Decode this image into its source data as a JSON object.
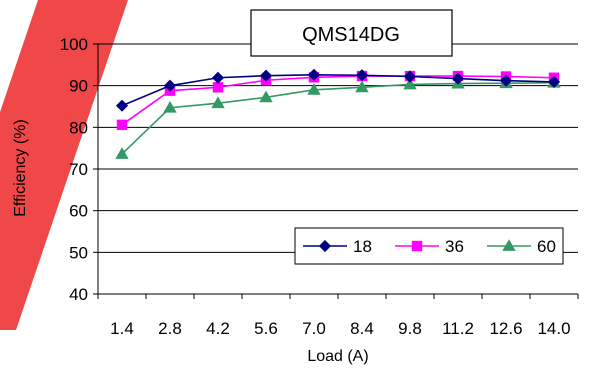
{
  "chart_data": {
    "type": "line",
    "title": "QMS14DG",
    "xlabel": "Load (A)",
    "ylabel": "Efficiency (%)",
    "categories": [
      "1.4",
      "2.8",
      "4.2",
      "5.6",
      "7.0",
      "8.4",
      "9.8",
      "11.2",
      "12.6",
      "14.0"
    ],
    "ylim": [
      40,
      100
    ],
    "yticks": [
      "40",
      "50",
      "60",
      "70",
      "80",
      "90",
      "100"
    ],
    "grid": true,
    "legend_position": "lower-right",
    "series": [
      {
        "name": "18",
        "color": "#000080",
        "marker": "diamond",
        "values": [
          85.2,
          90.0,
          91.9,
          92.4,
          92.6,
          92.5,
          92.2,
          91.7,
          91.2,
          90.9
        ]
      },
      {
        "name": "36",
        "color": "#ff00ff",
        "marker": "square",
        "values": [
          80.6,
          88.8,
          89.6,
          91.3,
          92.0,
          92.3,
          92.3,
          92.3,
          92.2,
          91.9
        ]
      },
      {
        "name": "60",
        "color": "#339966",
        "marker": "triangle",
        "values": [
          73.6,
          84.7,
          85.8,
          87.2,
          89.0,
          89.6,
          90.3,
          90.5,
          90.6,
          90.7
        ]
      }
    ]
  }
}
